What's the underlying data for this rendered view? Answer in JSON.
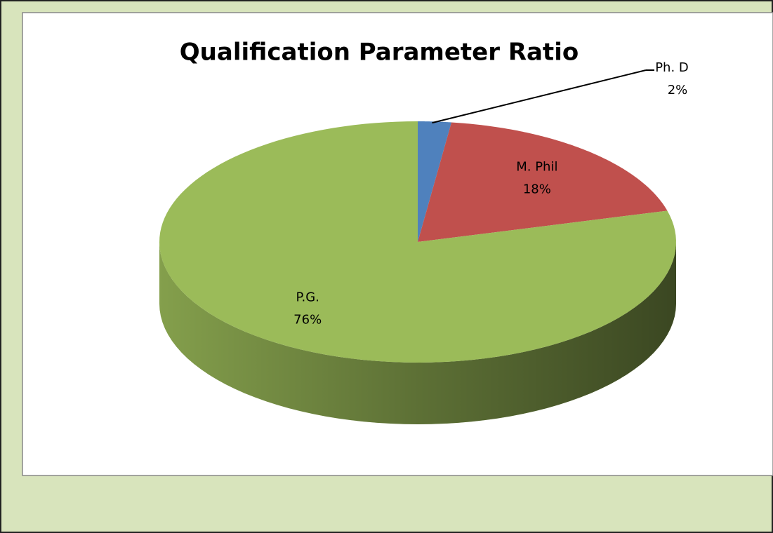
{
  "chart_data": {
    "type": "pie",
    "title": "Qualification Parameter Ratio",
    "categories": [
      "Ph. D",
      "M. Phil",
      "P.G."
    ],
    "values": [
      2,
      18,
      76
    ],
    "value_labels": [
      "2%",
      "18%",
      "76%"
    ],
    "colors": [
      "#4f81bd",
      "#c0504d",
      "#9bbb59"
    ]
  }
}
